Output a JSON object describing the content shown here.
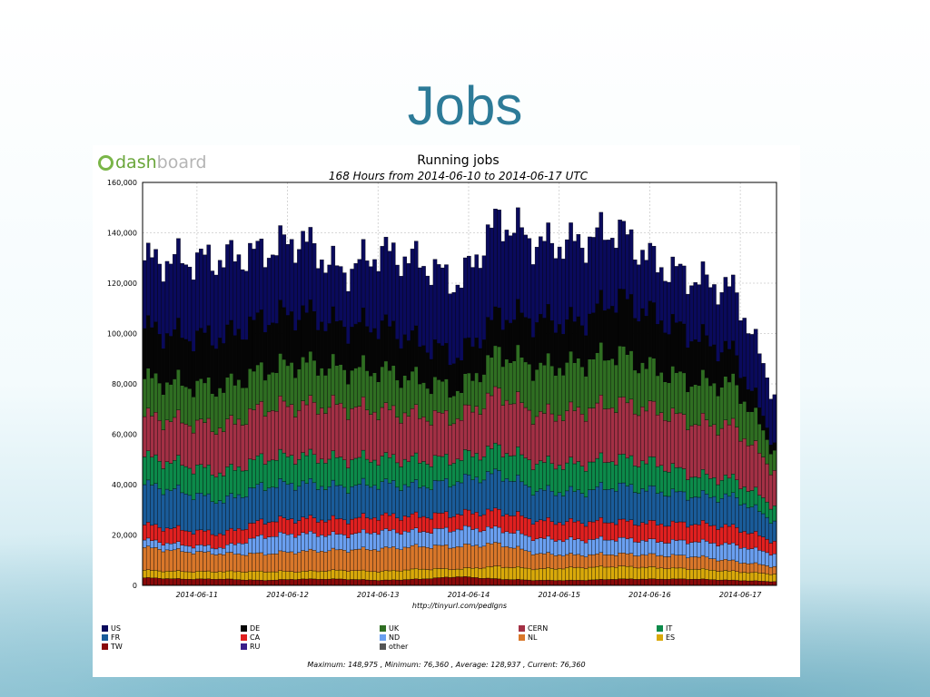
{
  "slide": {
    "title": "Jobs"
  },
  "logo": {
    "part1": "dash",
    "part2": "board"
  },
  "chart_data": {
    "type": "area",
    "stacked": true,
    "title": "Running jobs",
    "subtitle": "168 Hours from 2014-06-10 to 2014-06-17 UTC",
    "xlabel": "http://tinyurl.com/pedlgns",
    "ylabel": "",
    "ylim": [
      0,
      160000
    ],
    "yticks": [
      "0",
      "20,000",
      "40,000",
      "60,000",
      "80,000",
      "100,000",
      "120,000",
      "140,000",
      "160,000"
    ],
    "xticks": [
      "2014-06-11",
      "2014-06-12",
      "2014-06-13",
      "2014-06-14",
      "2014-06-15",
      "2014-06-16",
      "2014-06-17"
    ],
    "grid": true,
    "legend_position": "bottom",
    "x": [
      "2014-06-10 00:00",
      "2014-06-10 12:00",
      "2014-06-11 00:00",
      "2014-06-11 12:00",
      "2014-06-12 00:00",
      "2014-06-12 12:00",
      "2014-06-13 00:00",
      "2014-06-13 12:00",
      "2014-06-14 00:00",
      "2014-06-14 12:00",
      "2014-06-15 00:00",
      "2014-06-15 12:00",
      "2014-06-16 00:00",
      "2014-06-16 12:00",
      "2014-06-17 00:00",
      "2014-06-17 12:00",
      "2014-06-17 23:00"
    ],
    "series": [
      {
        "name": "TW",
        "color": "#8b0a0a",
        "values": [
          3000,
          2500,
          2500,
          2000,
          2500,
          2500,
          2000,
          2500,
          3500,
          2500,
          2000,
          2000,
          2500,
          2500,
          2500,
          2000,
          1500
        ]
      },
      {
        "name": "ES",
        "color": "#d9a90a",
        "values": [
          3000,
          3000,
          3000,
          3500,
          3000,
          3500,
          3500,
          4000,
          3000,
          5000,
          4500,
          5000,
          5000,
          4500,
          4000,
          3500,
          3000
        ]
      },
      {
        "name": "NL",
        "color": "#d9772a",
        "values": [
          9000,
          8000,
          7000,
          7000,
          8000,
          8000,
          9000,
          9000,
          9000,
          9000,
          6000,
          5000,
          5000,
          5000,
          5000,
          4000,
          3000
        ]
      },
      {
        "name": "ND",
        "color": "#6a9ff0",
        "values": [
          3000,
          2500,
          2500,
          7000,
          7000,
          6000,
          7000,
          6000,
          7000,
          6000,
          6000,
          6000,
          6000,
          5500,
          6000,
          6500,
          5000
        ]
      },
      {
        "name": "CA",
        "color": "#e02020",
        "values": [
          6000,
          6000,
          5500,
          6000,
          6000,
          6000,
          6000,
          6000,
          6000,
          7000,
          7000,
          7000,
          7000,
          7000,
          7000,
          7000,
          5000
        ]
      },
      {
        "name": "FR",
        "color": "#1a5c9a",
        "values": [
          16000,
          15000,
          13000,
          14000,
          14000,
          13000,
          13000,
          12000,
          13000,
          15000,
          12000,
          12000,
          14000,
          13000,
          11000,
          12000,
          8000
        ]
      },
      {
        "name": "IT",
        "color": "#0c8a4a",
        "values": [
          11000,
          11000,
          11000,
          11000,
          11000,
          11000,
          10000,
          10000,
          9000,
          10000,
          11000,
          11000,
          11000,
          11000,
          8000,
          7000,
          6000
        ]
      },
      {
        "name": "CERN",
        "color": "#a33045",
        "values": [
          16000,
          17000,
          18000,
          20000,
          20000,
          21000,
          19000,
          18000,
          16000,
          22000,
          19000,
          21000,
          22000,
          21000,
          21000,
          21000,
          14000
        ]
      },
      {
        "name": "UK",
        "color": "#2f6e22",
        "values": [
          15000,
          15000,
          16000,
          15000,
          17000,
          15000,
          16000,
          14000,
          11000,
          16000,
          19000,
          19000,
          20000,
          16000,
          16000,
          17000,
          8000
        ]
      },
      {
        "name": "DE",
        "color": "#050505",
        "values": [
          20000,
          19000,
          20000,
          20000,
          20000,
          17000,
          18000,
          15000,
          13000,
          15000,
          19000,
          16000,
          22000,
          21000,
          18000,
          12000,
          3000
        ]
      },
      {
        "name": "US",
        "color": "#0a0a5c",
        "values": [
          27000,
          30000,
          31000,
          27000,
          29000,
          21000,
          29000,
          32000,
          29000,
          38000,
          30000,
          32000,
          27000,
          21000,
          23000,
          25000,
          19000
        ]
      },
      {
        "name": "RU",
        "color": "#3a1e8a",
        "values": [
          0,
          0,
          0,
          0,
          0,
          0,
          0,
          0,
          0,
          0,
          0,
          0,
          0,
          0,
          0,
          0,
          0
        ]
      },
      {
        "name": "other",
        "color": "#555555",
        "values": [
          0,
          0,
          0,
          0,
          0,
          0,
          0,
          0,
          0,
          0,
          0,
          0,
          0,
          0,
          0,
          0,
          0
        ]
      }
    ],
    "legend": [
      {
        "name": "US",
        "color": "#0a0a5c"
      },
      {
        "name": "DE",
        "color": "#050505"
      },
      {
        "name": "UK",
        "color": "#2f6e22"
      },
      {
        "name": "CERN",
        "color": "#a33045"
      },
      {
        "name": "IT",
        "color": "#0c8a4a"
      },
      {
        "name": "FR",
        "color": "#1a5c9a"
      },
      {
        "name": "CA",
        "color": "#e02020"
      },
      {
        "name": "ND",
        "color": "#6a9ff0"
      },
      {
        "name": "NL",
        "color": "#d9772a"
      },
      {
        "name": "ES",
        "color": "#d9a90a"
      },
      {
        "name": "TW",
        "color": "#8b0a0a"
      },
      {
        "name": "RU",
        "color": "#3a1e8a"
      },
      {
        "name": "other",
        "color": "#555555"
      }
    ],
    "summary": "Maximum: 148,975 , Minimum: 76,360 , Average: 128,937 , Current: 76,360"
  }
}
